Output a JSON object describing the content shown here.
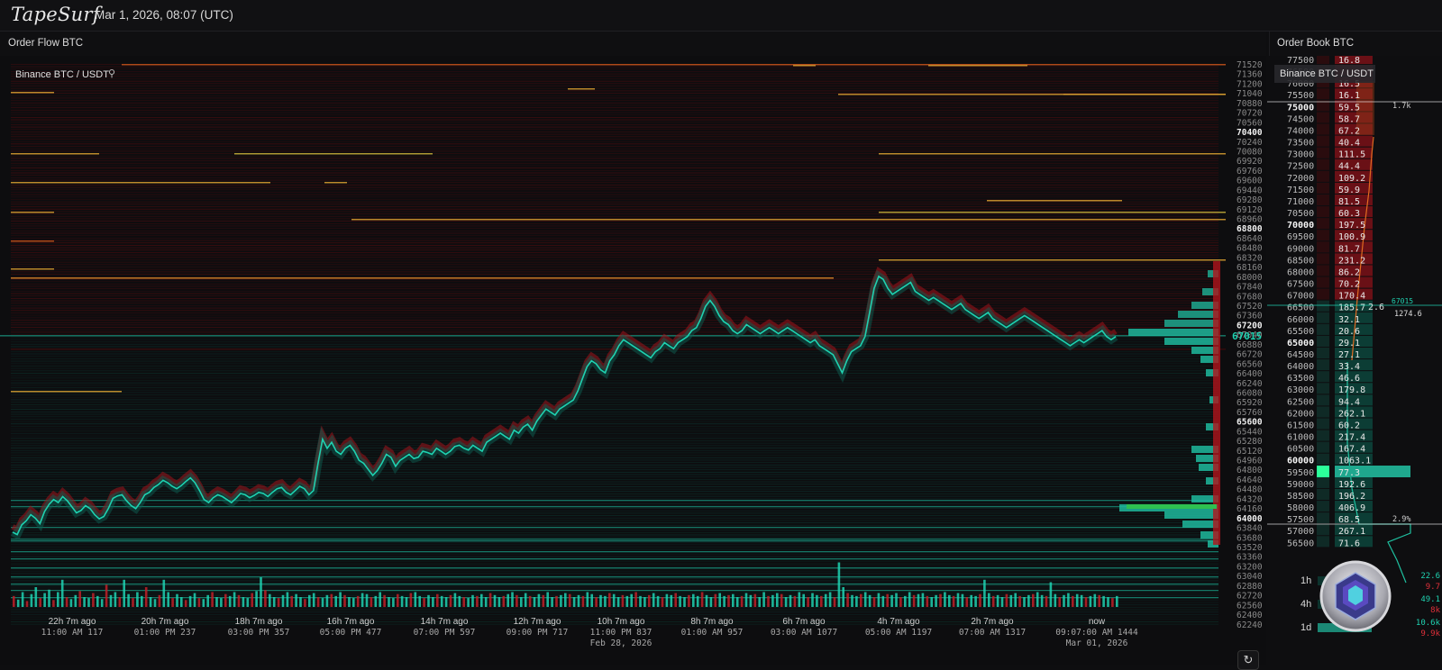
{
  "app": {
    "name": "TapeSurf",
    "datetime": "Mar 1, 2026, 08:07 (UTC)"
  },
  "order_flow": {
    "title": "Order Flow BTC",
    "symbol": "Binance BTC / USDT",
    "price_axis": [
      "71520",
      "71360",
      "71200",
      "71040",
      "70880",
      "70720",
      "70560",
      "70400",
      "70240",
      "70080",
      "69920",
      "69760",
      "69600",
      "69440",
      "69280",
      "69120",
      "68960",
      "68800",
      "68640",
      "68480",
      "68320",
      "68160",
      "68000",
      "67840",
      "67680",
      "67520",
      "67360",
      "67200",
      "67040",
      "66880",
      "66720",
      "66560",
      "66400",
      "66240",
      "66080",
      "65920",
      "65760",
      "65600",
      "65440",
      "65280",
      "65120",
      "64960",
      "64800",
      "64640",
      "64480",
      "64320",
      "64160",
      "64000",
      "63840",
      "63680",
      "63520",
      "63360",
      "63200",
      "63040",
      "62880",
      "62720",
      "62560",
      "62400",
      "62240"
    ],
    "bold_prices": [
      "70400",
      "68800",
      "67200",
      "65600",
      "64000"
    ],
    "current_price": "67015",
    "time_axis": [
      {
        "top": "22h 7m ago",
        "bottom": "11:00 AM 117"
      },
      {
        "top": "20h 7m ago",
        "bottom": "01:00 PM 237"
      },
      {
        "top": "18h 7m ago",
        "bottom": "03:00 PM 357"
      },
      {
        "top": "16h 7m ago",
        "bottom": "05:00 PM 477"
      },
      {
        "top": "14h 7m ago",
        "bottom": "07:00 PM 597"
      },
      {
        "top": "12h 7m ago",
        "bottom": "09:00 PM 717"
      },
      {
        "top": "10h 7m ago",
        "bottom": "11:00 PM 837",
        "date": "Feb 28, 2026"
      },
      {
        "top": "8h 7m ago",
        "bottom": "01:00 AM 957"
      },
      {
        "top": "6h 7m ago",
        "bottom": "03:00 AM 1077"
      },
      {
        "top": "4h 7m ago",
        "bottom": "05:00 AM 1197"
      },
      {
        "top": "2h 7m ago",
        "bottom": "07:00 AM 1317"
      },
      {
        "top": "now",
        "bottom": "09:07:00 AM 1444",
        "date": "Mar 01, 2026"
      }
    ],
    "price_series": [
      63760,
      63720,
      63880,
      63950,
      64050,
      63990,
      63900,
      64100,
      64220,
      64300,
      64250,
      64350,
      64280,
      64180,
      64080,
      64120,
      64200,
      64150,
      64050,
      63980,
      64020,
      64150,
      64320,
      64360,
      64380,
      64280,
      64200,
      64150,
      64250,
      64380,
      64420,
      64500,
      64550,
      64620,
      64580,
      64520,
      64480,
      64530,
      64600,
      64660,
      64580,
      64450,
      64300,
      64250,
      64330,
      64380,
      64350,
      64300,
      64250,
      64320,
      64400,
      64380,
      64330,
      64370,
      64420,
      64400,
      64350,
      64420,
      64480,
      64500,
      64420,
      64380,
      64450,
      64520,
      64480,
      64380,
      64450,
      64900,
      65300,
      65150,
      65250,
      65100,
      65050,
      65150,
      65200,
      65100,
      64950,
      64900,
      64800,
      64700,
      64780,
      64900,
      65050,
      65000,
      64850,
      64950,
      65000,
      65050,
      64980,
      65000,
      65100,
      65080,
      65050,
      65150,
      65100,
      65050,
      65100,
      65180,
      65200,
      65150,
      65120,
      65200,
      65150,
      65100,
      65250,
      65300,
      65350,
      65400,
      65350,
      65300,
      65450,
      65400,
      65500,
      65550,
      65450,
      65600,
      65700,
      65800,
      65750,
      65700,
      65800,
      65850,
      65900,
      65950,
      66100,
      66300,
      66500,
      66600,
      66550,
      66450,
      66400,
      66600,
      66700,
      66850,
      66950,
      66900,
      66850,
      66800,
      66750,
      66700,
      66650,
      66750,
      66800,
      66900,
      66850,
      66800,
      66900,
      66950,
      67000,
      67100,
      67150,
      67300,
      67500,
      67600,
      67500,
      67350,
      67250,
      67200,
      67100,
      67050,
      67100,
      67200,
      67150,
      67100,
      67050,
      67100,
      67150,
      67100,
      67050,
      67100,
      67150,
      67100,
      67050,
      67000,
      66950,
      66900,
      66950,
      66850,
      66800,
      66750,
      66700,
      66550,
      66400,
      66600,
      66750,
      66800,
      66850,
      67000,
      67400,
      67800,
      68000,
      67950,
      67800,
      67700,
      67750,
      67800,
      67850,
      67900,
      67750,
      67700,
      67650,
      67600,
      67650,
      67600,
      67550,
      67500,
      67450,
      67500,
      67550,
      67450,
      67400,
      67350,
      67300,
      67350,
      67400,
      67300,
      67250,
      67200,
      67150,
      67200,
      67250,
      67300,
      67350,
      67300,
      67250,
      67200,
      67150,
      67100,
      67050,
      67000,
      66950,
      66900,
      66850,
      66900,
      66950,
      66900,
      66950,
      67000,
      67050,
      67100,
      67000,
      66950,
      67000
    ],
    "volume_series": [
      22,
      15,
      30,
      12,
      26,
      40,
      18,
      28,
      35,
      14,
      30,
      55,
      20,
      16,
      24,
      32,
      20,
      18,
      28,
      22,
      16,
      45,
      24,
      30,
      20,
      55,
      26,
      18,
      30,
      22,
      40,
      20,
      16,
      24,
      55,
      30,
      18,
      26,
      20,
      14,
      22,
      28,
      18,
      16,
      24,
      30,
      20,
      18,
      26,
      22,
      30,
      24,
      20,
      18,
      28,
      32,
      60,
      34,
      26,
      20,
      18,
      24,
      30,
      22,
      26,
      20,
      16,
      24,
      28,
      20,
      18,
      24,
      26,
      22,
      30,
      24,
      20,
      18,
      22,
      28,
      26,
      20,
      22,
      30,
      24,
      20,
      18,
      26,
      22,
      20,
      28,
      30,
      22,
      18,
      24,
      20,
      26,
      22,
      20,
      24,
      28,
      22,
      20,
      18,
      24,
      22,
      26,
      20,
      28,
      24,
      20,
      22,
      26,
      30,
      24,
      20,
      28,
      22,
      20,
      26,
      24,
      30,
      20,
      22,
      24,
      28,
      26,
      20,
      24,
      22,
      30,
      26,
      20,
      24,
      22,
      28,
      26,
      20,
      24,
      22,
      26,
      30,
      22,
      20,
      24,
      28,
      22,
      20,
      26,
      24,
      28,
      22,
      20,
      24,
      26,
      22,
      30,
      24,
      20,
      26,
      28,
      22,
      24,
      26,
      20,
      22,
      28,
      24,
      26,
      20,
      30,
      22,
      24,
      28,
      26,
      20,
      24,
      22,
      30,
      26,
      20,
      28,
      24,
      22,
      26,
      30,
      20,
      90,
      40,
      28,
      24,
      22,
      26,
      30,
      24,
      20,
      28,
      22,
      26,
      24,
      28,
      20,
      22,
      30,
      24,
      26,
      28,
      22,
      20,
      24,
      26,
      30,
      24,
      22,
      28,
      26,
      20,
      24,
      22,
      26,
      55,
      28,
      22,
      24,
      20,
      26,
      24,
      28,
      22,
      20,
      24,
      26,
      30,
      24,
      22,
      50,
      26,
      20,
      24,
      28,
      22,
      26,
      24,
      20,
      22,
      26,
      24,
      22,
      20,
      18,
      22
    ]
  },
  "order_book": {
    "title": "Order Book BTC",
    "symbol": "Binance BTC / USDT",
    "asks": [
      {
        "price": "77500",
        "size": "16.8"
      },
      {
        "price": "76500",
        "size": ""
      },
      {
        "price": "76000",
        "size": "16.5"
      },
      {
        "price": "75500",
        "size": "16.1"
      },
      {
        "price": "75000",
        "size": "59.5",
        "bold": true
      },
      {
        "price": "74500",
        "size": "58.7"
      },
      {
        "price": "74000",
        "size": "67.2"
      },
      {
        "price": "73500",
        "size": "40.4"
      },
      {
        "price": "73000",
        "size": "111.5"
      },
      {
        "price": "72500",
        "size": "44.4"
      },
      {
        "price": "72000",
        "size": "109.2"
      },
      {
        "price": "71500",
        "size": "59.9"
      },
      {
        "price": "71000",
        "size": "81.5"
      },
      {
        "price": "70500",
        "size": "60.3"
      },
      {
        "price": "70000",
        "size": "197.5",
        "bold": true
      },
      {
        "price": "69500",
        "size": "100.9"
      },
      {
        "price": "69000",
        "size": "81.7"
      },
      {
        "price": "68500",
        "size": "231.2"
      },
      {
        "price": "68000",
        "size": "86.2"
      },
      {
        "price": "67500",
        "size": "70.2"
      },
      {
        "price": "67000",
        "size": "170.4"
      }
    ],
    "bids": [
      {
        "price": "66500",
        "size": "185.7"
      },
      {
        "price": "66000",
        "size": "32.1"
      },
      {
        "price": "65500",
        "size": "20.6"
      },
      {
        "price": "65000",
        "size": "29.1",
        "bold": true
      },
      {
        "price": "64500",
        "size": "27.1"
      },
      {
        "price": "64000",
        "size": "33.4"
      },
      {
        "price": "63500",
        "size": "46.6"
      },
      {
        "price": "63000",
        "size": "179.8"
      },
      {
        "price": "62500",
        "size": "94.4"
      },
      {
        "price": "62000",
        "size": "262.1"
      },
      {
        "price": "61500",
        "size": "60.2"
      },
      {
        "price": "61000",
        "size": "217.4"
      },
      {
        "price": "60500",
        "size": "167.4"
      },
      {
        "price": "60000",
        "size": "1063.1",
        "bold": true
      },
      {
        "price": "59500",
        "size": "77.3"
      },
      {
        "price": "59000",
        "size": "192.6"
      },
      {
        "price": "58500",
        "size": "196.2"
      },
      {
        "price": "58000",
        "size": "406.9"
      },
      {
        "price": "57500",
        "size": "68.5"
      },
      {
        "price": "57000",
        "size": "267.1"
      },
      {
        "price": "56500",
        "size": "71.6"
      }
    ],
    "spread_label": "2.6",
    "current_price": "67015",
    "cum_ask_label": "1274.6",
    "ask_pct": "1.7k",
    "bid_pct": "2.9%",
    "timeframes": [
      {
        "label": "1h",
        "values": [
          "22.6",
          "9.7"
        ]
      },
      {
        "label": "4h",
        "values": [
          "49.1",
          "8k"
        ]
      },
      {
        "label": "1d",
        "values": [
          "10.6k",
          "9.9k"
        ]
      }
    ]
  },
  "colors": {
    "bid": "#1fd1b0",
    "ask": "#d81f28",
    "orange": "#e08a2a",
    "gold": "#d9b43a",
    "bg": "#0d0d0f"
  }
}
